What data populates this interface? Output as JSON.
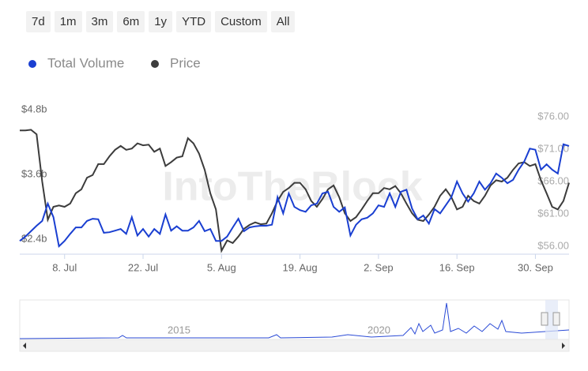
{
  "range_buttons": [
    "7d",
    "1m",
    "3m",
    "6m",
    "1y",
    "YTD",
    "Custom",
    "All"
  ],
  "chart_data": {
    "type": "line",
    "watermark": "IntoTheBlock",
    "categories": [
      null,
      null,
      null,
      null,
      null,
      null,
      null,
      null,
      "8. Jul",
      null,
      null,
      null,
      null,
      null,
      null,
      null,
      null,
      null,
      null,
      null,
      null,
      null,
      "22. Jul",
      null,
      null,
      null,
      null,
      null,
      null,
      null,
      null,
      null,
      null,
      null,
      null,
      null,
      "5. Aug",
      null,
      null,
      null,
      null,
      null,
      null,
      null,
      null,
      null,
      null,
      null,
      null,
      null,
      "19. Aug",
      null,
      null,
      null,
      null,
      null,
      null,
      null,
      null,
      null,
      null,
      null,
      null,
      null,
      "2. Sep",
      null,
      null,
      null,
      null,
      null,
      null,
      null,
      null,
      null,
      null,
      null,
      null,
      null,
      "16. Sep",
      null,
      null,
      null,
      null,
      null,
      null,
      null,
      null,
      null,
      null,
      null,
      null,
      null,
      "30. Sep",
      null,
      null,
      null,
      null,
      null,
      null
    ],
    "series": [
      {
        "name": "Total Volume",
        "color": "#1a3fd1",
        "values": [
          2.5,
          2.58,
          2.68,
          2.78,
          2.87,
          3.19,
          2.94,
          2.4,
          2.5,
          2.63,
          2.75,
          2.75,
          2.87,
          2.91,
          2.9,
          2.65,
          2.66,
          2.69,
          2.72,
          2.63,
          2.94,
          2.6,
          2.72,
          2.58,
          2.72,
          2.63,
          2.99,
          2.69,
          2.77,
          2.69,
          2.69,
          2.75,
          2.87,
          2.68,
          2.72,
          2.5,
          2.5,
          2.58,
          2.75,
          2.91,
          2.68,
          2.75,
          2.77,
          2.78,
          2.78,
          2.8,
          3.31,
          3.01,
          3.38,
          3.13,
          3.07,
          3.04,
          3.16,
          3.19,
          3.38,
          3.41,
          3.13,
          3.04,
          3.12,
          2.6,
          2.8,
          2.9,
          2.93,
          3.01,
          3.16,
          3.13,
          3.38,
          3.13,
          3.41,
          3.45,
          3.1,
          2.9,
          2.97,
          2.82,
          3.09,
          3.01,
          3.16,
          3.31,
          3.6,
          3.38,
          3.23,
          3.38,
          3.6,
          3.45,
          3.57,
          3.75,
          3.67,
          3.57,
          3.63,
          3.82,
          3.97,
          4.21,
          4.19,
          3.82,
          3.92,
          3.82,
          3.75,
          4.29,
          4.26
        ]
      },
      {
        "name": "Price",
        "color": "#3c3c3c",
        "axis": "y2",
        "values": [
          73.9,
          73.9,
          74.0,
          73.3,
          66.0,
          60.1,
          62.1,
          62.3,
          62.1,
          62.6,
          64.2,
          64.8,
          66.6,
          67.0,
          68.7,
          68.7,
          69.9,
          70.9,
          71.5,
          70.9,
          71.1,
          71.9,
          71.6,
          71.7,
          70.6,
          71.1,
          68.4,
          69.0,
          69.7,
          69.9,
          72.7,
          71.9,
          70.3,
          67.8,
          64.2,
          61.7,
          55.3,
          56.9,
          56.5,
          57.5,
          58.7,
          59.3,
          59.7,
          59.4,
          59.5,
          61.1,
          63.0,
          64.4,
          65.0,
          65.8,
          65.8,
          64.8,
          63.0,
          62.1,
          63.3,
          64.8,
          65.4,
          63.6,
          61.1,
          59.9,
          60.5,
          61.7,
          63.0,
          64.2,
          64.2,
          65.0,
          64.8,
          65.3,
          64.2,
          62.6,
          61.1,
          60.1,
          59.9,
          60.9,
          62.1,
          63.8,
          64.8,
          63.6,
          61.7,
          62.1,
          63.8,
          63.0,
          62.6,
          63.8,
          65.4,
          66.2,
          66.0,
          66.6,
          67.8,
          68.8,
          69.0,
          68.4,
          68.7,
          66.2,
          64.2,
          62.1,
          61.7,
          63.0,
          65.8
        ]
      }
    ],
    "ylim": [
      2.4,
      4.8
    ],
    "yticks": [
      {
        "value": 2.4,
        "label": "$2.4b"
      },
      {
        "value": 3.6,
        "label": "$3.6b"
      },
      {
        "value": 4.8,
        "label": "$4.8b"
      }
    ],
    "y2lim": [
      56,
      76
    ],
    "y2ticks": [
      {
        "value": 56,
        "label": "$56.00"
      },
      {
        "value": 61,
        "label": "$61.00"
      },
      {
        "value": 66,
        "label": "$66.00"
      },
      {
        "value": 71,
        "label": "$71.00"
      },
      {
        "value": 76,
        "label": "$76.00"
      }
    ],
    "navigator": {
      "labels": [
        "2015",
        "2020"
      ]
    }
  }
}
